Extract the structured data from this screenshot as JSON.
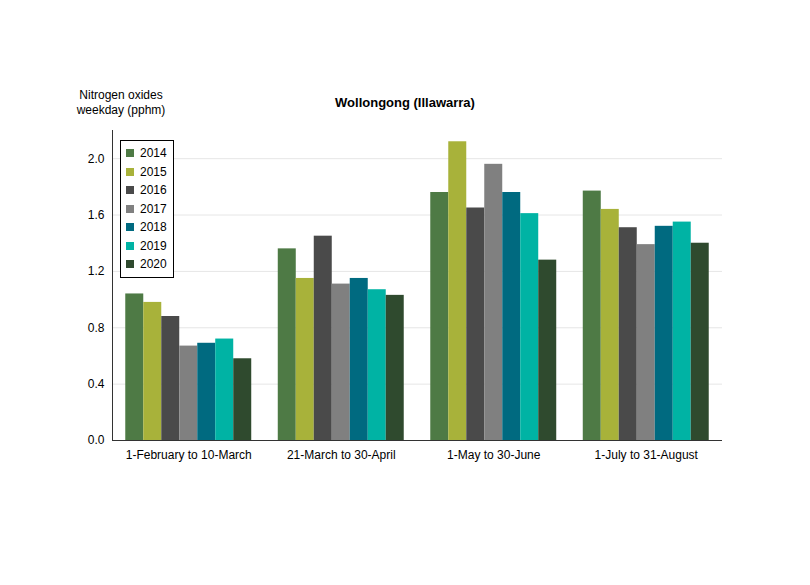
{
  "chart_data": {
    "type": "bar",
    "title": "Wollongong (Illawarra)",
    "ylabel": "Nitrogen oxides weekday (pphm)",
    "categories": [
      "1-February to 10-March",
      "21-March to 30-April",
      "1-May to 30-June",
      "1-July to 31-August"
    ],
    "series": [
      {
        "name": "2014",
        "color": "#4e7a45",
        "values": [
          1.04,
          1.36,
          1.76,
          1.77
        ]
      },
      {
        "name": "2015",
        "color": "#a8b23a",
        "values": [
          0.98,
          1.15,
          2.12,
          1.64
        ]
      },
      {
        "name": "2016",
        "color": "#4a4a4a",
        "values": [
          0.88,
          1.45,
          1.65,
          1.51
        ]
      },
      {
        "name": "2017",
        "color": "#808080",
        "values": [
          0.67,
          1.11,
          1.96,
          1.39
        ]
      },
      {
        "name": "2018",
        "color": "#006a80",
        "values": [
          0.69,
          1.15,
          1.76,
          1.52
        ]
      },
      {
        "name": "2019",
        "color": "#00b3a4",
        "values": [
          0.72,
          1.07,
          1.61,
          1.55
        ]
      },
      {
        "name": "2020",
        "color": "#2f4a2e",
        "values": [
          0.58,
          1.03,
          1.28,
          1.4
        ]
      }
    ],
    "ylim": [
      0,
      2.2
    ],
    "yticks": [
      {
        "value": 0,
        "label": "0.0"
      },
      {
        "value": 0.4,
        "label": "0.4"
      },
      {
        "value": 0.8,
        "label": "0.8"
      },
      {
        "value": 1.2,
        "label": "1.2"
      },
      {
        "value": 1.6,
        "label": "1.6"
      },
      {
        "value": 2,
        "label": "2.0"
      }
    ],
    "grid": true,
    "legend": "top-left"
  }
}
